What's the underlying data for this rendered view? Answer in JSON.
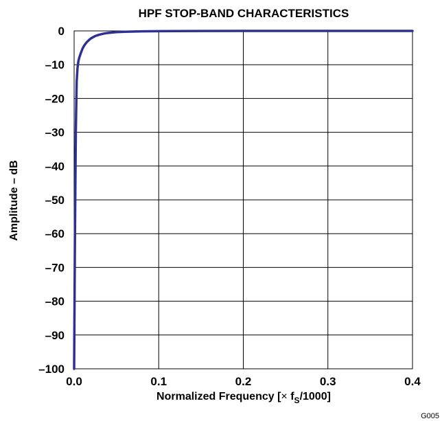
{
  "chart_data": {
    "type": "line",
    "title": "HPF STOP-BAND CHARACTERISTICS",
    "xlabel": {
      "prefix": "Normalized Frequency  [",
      "times": "×",
      "f": " f",
      "sub": "S",
      "suffix": "/1000]"
    },
    "ylabel": "Amplitude – dB",
    "xlim": [
      0,
      0.4
    ],
    "ylim": [
      -100,
      0
    ],
    "xticks": [
      0.0,
      0.1,
      0.2,
      0.3,
      0.4
    ],
    "xtick_labels": [
      "0.0",
      "0.1",
      "0.2",
      "0.3",
      "0.4"
    ],
    "yticks": [
      0,
      -10,
      -20,
      -30,
      -40,
      -50,
      -60,
      -70,
      -80,
      -90,
      -100
    ],
    "ytick_labels": [
      "0",
      "–10",
      "–20",
      "–30",
      "–40",
      "–50",
      "–60",
      "–70",
      "–80",
      "–90",
      "–100"
    ],
    "grid": true,
    "series": [
      {
        "color": "#2e3192",
        "x": [
          0.0,
          0.001,
          0.002,
          0.003,
          0.004,
          0.005,
          0.006,
          0.008,
          0.01,
          0.012,
          0.015,
          0.018,
          0.02,
          0.025,
          0.03,
          0.035,
          0.04,
          0.05,
          0.06,
          0.08,
          0.1,
          0.12,
          0.15,
          0.2,
          0.25,
          0.3,
          0.35,
          0.4
        ],
        "y": [
          -100,
          -60,
          -30,
          -15,
          -11,
          -9,
          -8,
          -6.5,
          -5.2,
          -4.3,
          -3.3,
          -2.6,
          -2.2,
          -1.5,
          -1.1,
          -0.8,
          -0.6,
          -0.35,
          -0.25,
          -0.12,
          -0.08,
          -0.05,
          -0.03,
          -0.01,
          0,
          0,
          0,
          0
        ]
      }
    ]
  },
  "figure_code": "G005"
}
